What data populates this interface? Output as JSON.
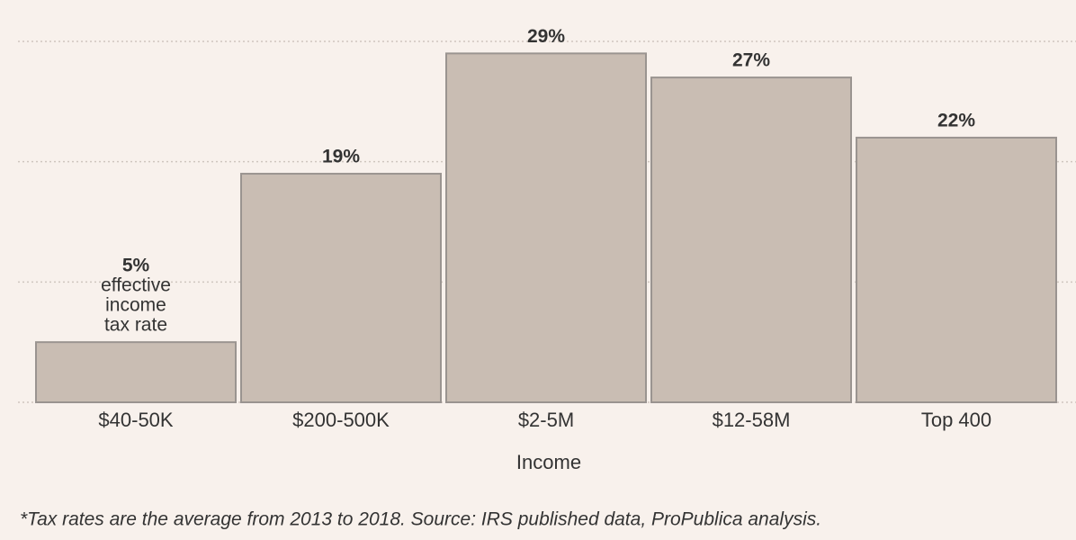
{
  "chart_data": {
    "type": "bar",
    "categories": [
      "$40-50K",
      "$200-500K",
      "$2-5M",
      "$12-58M",
      "Top 400"
    ],
    "values": [
      5,
      19,
      29,
      27,
      22
    ],
    "value_labels": [
      "5%",
      "19%",
      "29%",
      "27%",
      "22%"
    ],
    "annotation": [
      "effective",
      "income",
      "tax rate"
    ],
    "color": "#c9bdb3",
    "ylim": [
      0,
      30
    ],
    "yticks": [
      0,
      10,
      20,
      30
    ],
    "grid": true,
    "x_label": "Income",
    "footnote": "*Tax rates are the average from 2013 to 2018. Source: IRS published data, ProPublica analysis."
  }
}
